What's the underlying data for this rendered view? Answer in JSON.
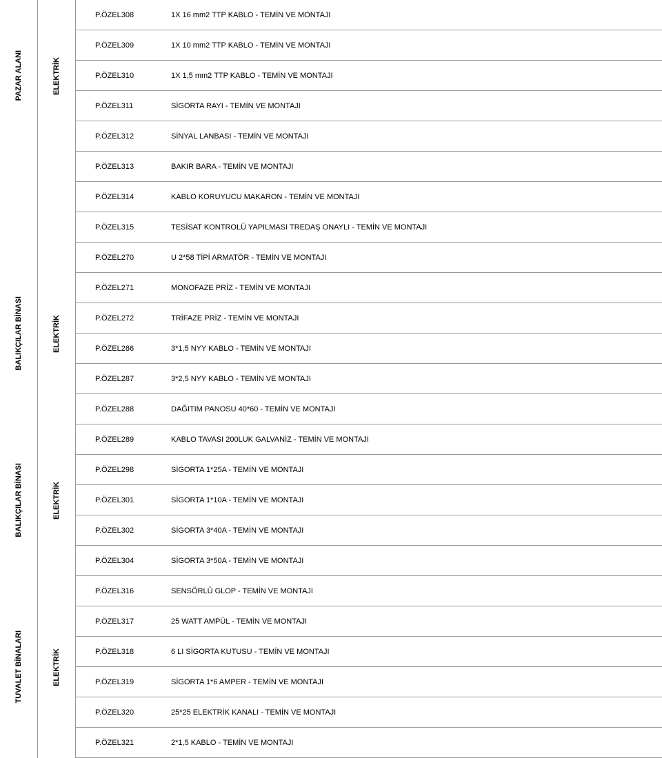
{
  "sections": [
    {
      "group": "PAZAR ALANI",
      "category": "ELEKTRİK",
      "groupSpanRows": 5,
      "catSpanRows": 5,
      "rows": [
        {
          "code": "P.ÖZEL308",
          "desc": "1X 16 mm2 TTP KABLO - TEMİN VE MONTAJI"
        },
        {
          "code": "P.ÖZEL309",
          "desc": "1X 10 mm2 TTP KABLO - TEMİN VE MONTAJI"
        },
        {
          "code": "P.ÖZEL310",
          "desc": "1X 1,5 mm2 TTP KABLO - TEMİN VE MONTAJI"
        },
        {
          "code": "P.ÖZEL311",
          "desc": "SİGORTA RAYI - TEMİN VE MONTAJI"
        },
        {
          "code": "P.ÖZEL312",
          "desc": "SİNYAL LANBASI - TEMİN VE MONTAJI"
        }
      ],
      "tailRows": [
        {
          "code": "P.ÖZEL313",
          "desc": "BAKIR BARA - TEMİN VE MONTAJI"
        },
        {
          "code": "P.ÖZEL314",
          "desc": "KABLO KORUYUCU MAKARON - TEMİN VE MONTAJI"
        },
        {
          "code": "P.ÖZEL315",
          "desc": "TESİSAT KONTROLÜ YAPILMASI TREDAŞ ONAYLI - TEMİN VE MONTAJI"
        }
      ]
    },
    {
      "group": "BALIKÇILAR BİNASI",
      "category": "ELEKTRİK",
      "headRows": [
        {
          "code": "P.ÖZEL270",
          "desc": "U 2*58 TİPİ ARMATÖR -  TEMİN VE MONTAJI"
        }
      ],
      "rows": [
        {
          "code": "P.ÖZEL271",
          "desc": "MONOFAZE PRİZ  -  TEMİN VE MONTAJI"
        },
        {
          "code": "P.ÖZEL272",
          "desc": "TRİFAZE PRİZ - TEMİN VE MONTAJI"
        },
        {
          "code": "P.ÖZEL286",
          "desc": "3*1,5 NYY KABLO - TEMİN VE MONTAJI"
        },
        {
          "code": "P.ÖZEL287",
          "desc": "3*2,5 NYY KABLO - TEMİN VE MONTAJI"
        }
      ],
      "tailRows": [
        {
          "code": "P.ÖZEL288",
          "desc": "DAĞITIM PANOSU 40*60 - TEMİN VE MONTAJI"
        }
      ]
    },
    {
      "group": "BALIKÇILAR BİNASI",
      "category": "ELEKTRİK",
      "rows": [
        {
          "code": "P.ÖZEL289",
          "desc": "KABLO TAVASI 200LUK GALVANİZ - TEMİN VE MONTAJI"
        },
        {
          "code": "P.ÖZEL298",
          "desc": "SİGORTA 1*25A - TEMİN VE MONTAJI"
        },
        {
          "code": "P.ÖZEL301",
          "desc": "SİGORTA 1*10A - TEMİN VE MONTAJI"
        },
        {
          "code": "P.ÖZEL302",
          "desc": "SİGORTA 3*40A - TEMİN VE MONTAJI"
        },
        {
          "code": "P.ÖZEL304",
          "desc": "SİGORTA 3*50A - TEMİN VE MONTAJI"
        }
      ]
    },
    {
      "group": "TUVALET BİNALARI",
      "category": "ELEKTRİK",
      "headRows": [
        {
          "code": "P.ÖZEL316",
          "desc": "SENSÖRLÜ GLOP - TEMİN VE MONTAJI"
        }
      ],
      "rows": [
        {
          "code": "P.ÖZEL317",
          "desc": "25 WATT AMPÜL - TEMİN VE MONTAJI"
        },
        {
          "code": "P.ÖZEL318",
          "desc": "6 LI SİGORTA KUTUSU - TEMİN VE MONTAJI"
        },
        {
          "code": "P.ÖZEL319",
          "desc": "SİGORTA 1*6 AMPER - TEMİN VE MONTAJI"
        },
        {
          "code": "P.ÖZEL320",
          "desc": "25*25 ELEKTRİK KANALI - TEMİN VE MONTAJI"
        }
      ],
      "tailRows": [
        {
          "code": "P.ÖZEL321",
          "desc": "2*1,5 KABLO - TEMİN VE MONTAJI"
        }
      ]
    }
  ]
}
